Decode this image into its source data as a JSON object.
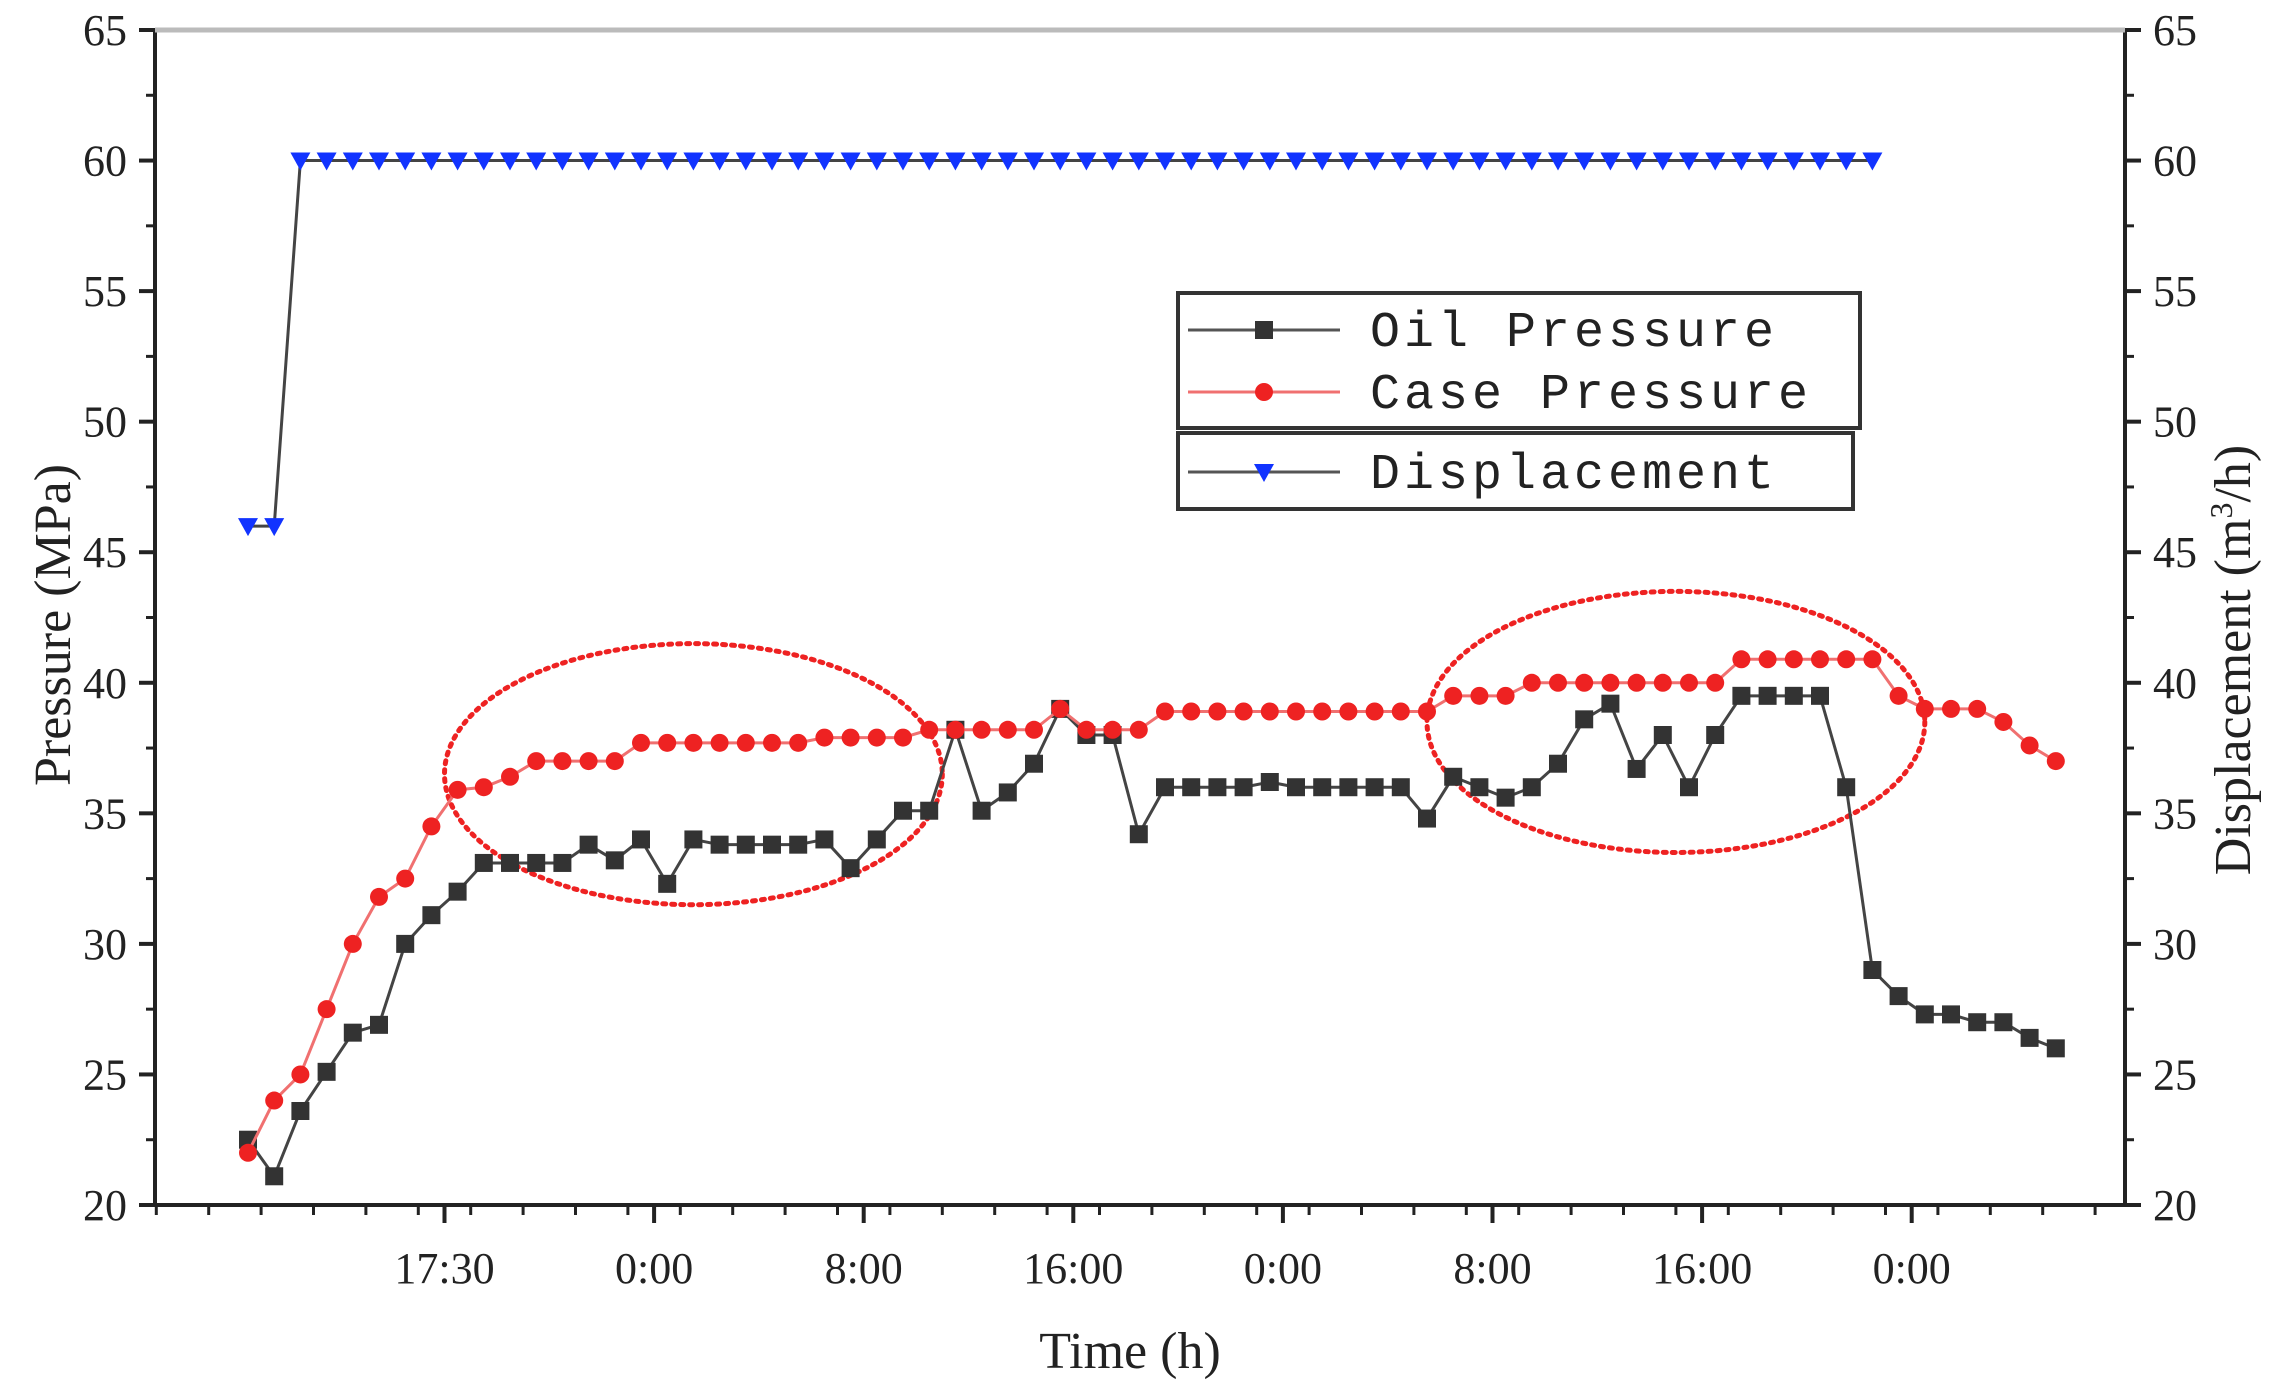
{
  "chart_data": {
    "type": "line",
    "title": "",
    "xlabel": "Time (h)",
    "ylabel": "Pressure (MPa)",
    "y2label_text": "Displacement (m",
    "y2label_sup": "3",
    "y2label_end": "/h)",
    "ylim": [
      20,
      65
    ],
    "y2lim": [
      20,
      65
    ],
    "yticks": [
      "20",
      "25",
      "30",
      "35",
      "40",
      "45",
      "50",
      "55",
      "60",
      "65"
    ],
    "xticks": [
      "17:30",
      "0:00",
      "8:00",
      "16:00",
      "0:00",
      "8:00",
      "16:00",
      "0:00"
    ],
    "xtick_index": [
      7.5,
      15.5,
      23.5,
      31.5,
      39.5,
      47.5,
      55.5,
      63.5
    ],
    "x_point_count": 70,
    "grid": false,
    "legend_position": "upper-right",
    "series": [
      {
        "name": "Oil Pressure",
        "axis": "left",
        "color": "#333333",
        "marker": "square",
        "values": [
          22.5,
          21.1,
          23.6,
          25.1,
          26.6,
          26.9,
          30.0,
          31.1,
          32.0,
          33.1,
          33.1,
          33.1,
          33.1,
          33.8,
          33.2,
          34.0,
          32.3,
          34.0,
          33.8,
          33.8,
          33.8,
          33.8,
          34.0,
          32.9,
          34.0,
          35.1,
          35.1,
          38.2,
          35.1,
          35.8,
          36.9,
          39.0,
          38.0,
          38.0,
          34.2,
          36.0,
          36.0,
          36.0,
          36.0,
          36.2,
          36.0,
          36.0,
          36.0,
          36.0,
          36.0,
          34.8,
          36.4,
          36.0,
          35.6,
          36.0,
          36.9,
          38.6,
          39.2,
          36.7,
          38.0,
          36.0,
          38.0,
          39.5,
          39.5,
          39.5,
          39.5,
          36.0,
          29.0,
          28.0,
          27.3,
          27.3,
          27.0,
          27.0,
          26.4,
          26.0
        ]
      },
      {
        "name": "Case Pressure",
        "axis": "left",
        "color": "#ee2222",
        "marker": "circle",
        "values": [
          22.0,
          24.0,
          25.0,
          27.5,
          30.0,
          31.8,
          32.5,
          34.5,
          35.9,
          36.0,
          36.4,
          37.0,
          37.0,
          37.0,
          37.0,
          37.7,
          37.7,
          37.7,
          37.7,
          37.7,
          37.7,
          37.7,
          37.9,
          37.9,
          37.9,
          37.9,
          38.2,
          38.2,
          38.2,
          38.2,
          38.2,
          39.0,
          38.2,
          38.2,
          38.2,
          38.9,
          38.9,
          38.9,
          38.9,
          38.9,
          38.9,
          38.9,
          38.9,
          38.9,
          38.9,
          38.9,
          39.5,
          39.5,
          39.5,
          40.0,
          40.0,
          40.0,
          40.0,
          40.0,
          40.0,
          40.0,
          40.0,
          40.9,
          40.9,
          40.9,
          40.9,
          40.9,
          40.9,
          39.5,
          39.0,
          39.0,
          39.0,
          38.5,
          37.6,
          37.0
        ]
      },
      {
        "name": "Displacement",
        "axis": "right",
        "color": "#1133ff",
        "marker": "triangle-down",
        "values": [
          46.0,
          46.0,
          60.0,
          60.0,
          60.0,
          60.0,
          60.0,
          60.0,
          60.0,
          60.0,
          60.0,
          60.0,
          60.0,
          60.0,
          60.0,
          60.0,
          60.0,
          60.0,
          60.0,
          60.0,
          60.0,
          60.0,
          60.0,
          60.0,
          60.0,
          60.0,
          60.0,
          60.0,
          60.0,
          60.0,
          60.0,
          60.0,
          60.0,
          60.0,
          60.0,
          60.0,
          60.0,
          60.0,
          60.0,
          60.0,
          60.0,
          60.0,
          60.0,
          60.0,
          60.0,
          60.0,
          60.0,
          60.0,
          60.0,
          60.0,
          60.0,
          60.0,
          60.0,
          60.0,
          60.0,
          60.0,
          60.0,
          60.0,
          60.0,
          60.0,
          60.0,
          60.0,
          60.0
        ]
      }
    ],
    "annotations": [
      {
        "shape": "dotted-ellipse",
        "color": "#ee2222",
        "x_range": [
          7.5,
          26.5
        ],
        "y_range": [
          31.5,
          41.5
        ]
      },
      {
        "shape": "dotted-ellipse",
        "color": "#ee2222",
        "x_range": [
          45.0,
          64.0
        ],
        "y_range": [
          33.5,
          43.5
        ]
      }
    ]
  }
}
